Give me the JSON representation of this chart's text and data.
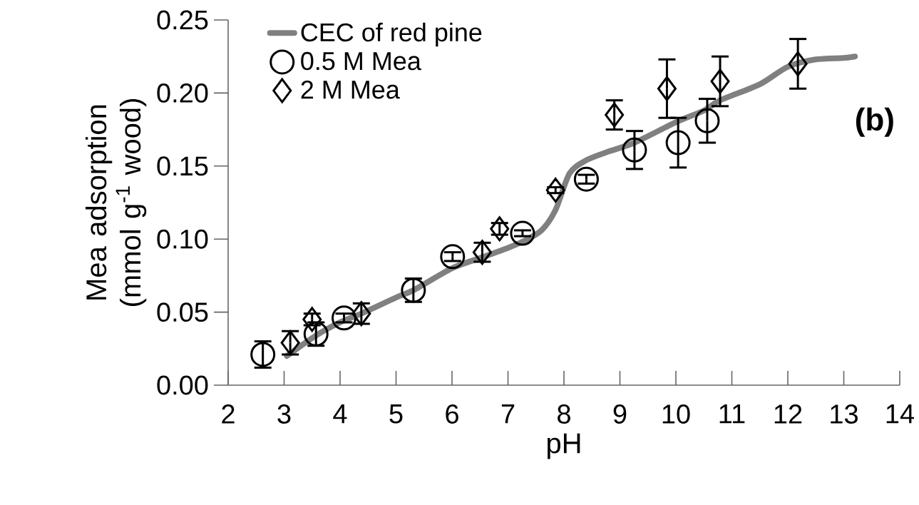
{
  "chart_data": {
    "type": "scatter",
    "xlabel": "pH",
    "ylabel": "Mea adsorption (mmol g$^{-1}$ wood)",
    "annotations": [
      "(b)"
    ],
    "xlim": [
      2,
      14
    ],
    "ylim": [
      0,
      0.25
    ],
    "xticks": [
      2,
      3,
      4,
      5,
      6,
      7,
      8,
      9,
      10,
      11,
      12,
      13,
      14
    ],
    "yticks": [
      {
        "value": 0,
        "label": "0.00"
      },
      {
        "value": 0.05,
        "label": "0.05"
      },
      {
        "value": 0.1,
        "label": "0.10"
      },
      {
        "value": 0.15,
        "label": "0.15"
      },
      {
        "value": 0.2,
        "label": "0.20"
      },
      {
        "value": 0.25,
        "label": "0.25"
      }
    ],
    "legend": "top left",
    "series": [
      {
        "name": "CEC of red pine",
        "type": "line",
        "color": "#808080",
        "marker": "none",
        "x": [
          3.05,
          3.57,
          4.0,
          4.38,
          5.0,
          5.31,
          6.0,
          6.5,
          7.0,
          7.3,
          7.6,
          7.85,
          8.1,
          8.4,
          8.8,
          9.26,
          10.0,
          10.5,
          10.79,
          11.5,
          12.0,
          12.5,
          13.0,
          13.2
        ],
        "values": [
          0.02,
          0.034,
          0.043,
          0.049,
          0.06,
          0.065,
          0.08,
          0.087,
          0.094,
          0.099,
          0.106,
          0.12,
          0.145,
          0.154,
          0.16,
          0.166,
          0.18,
          0.188,
          0.195,
          0.206,
          0.218,
          0.223,
          0.224,
          0.225
        ]
      },
      {
        "name": "0.5 M Mea",
        "color": "#000000",
        "marker": "circle",
        "x": [
          2.62,
          3.57,
          4.07,
          5.31,
          6.01,
          7.26,
          8.4,
          9.26,
          10.04,
          10.56
        ],
        "values": [
          0.021,
          0.035,
          0.046,
          0.065,
          0.088,
          0.104,
          0.141,
          0.161,
          0.166,
          0.181
        ],
        "errors": [
          0.009,
          0.008,
          0.003,
          0.008,
          0.003,
          0.002,
          0.003,
          0.013,
          0.017,
          0.015
        ]
      },
      {
        "name": "2 M Mea",
        "color": "#000000",
        "marker": "diamond",
        "x": [
          3.11,
          3.5,
          4.38,
          6.54,
          6.85,
          7.85,
          8.9,
          9.84,
          10.79,
          12.18
        ],
        "values": [
          0.029,
          0.045,
          0.049,
          0.091,
          0.107,
          0.1335,
          0.185,
          0.203,
          0.208,
          0.22
        ],
        "errors": [
          0.008,
          0.004,
          0.007,
          0.0065,
          0.004,
          0.002,
          0.01,
          0.02,
          0.017,
          0.017
        ]
      }
    ]
  }
}
